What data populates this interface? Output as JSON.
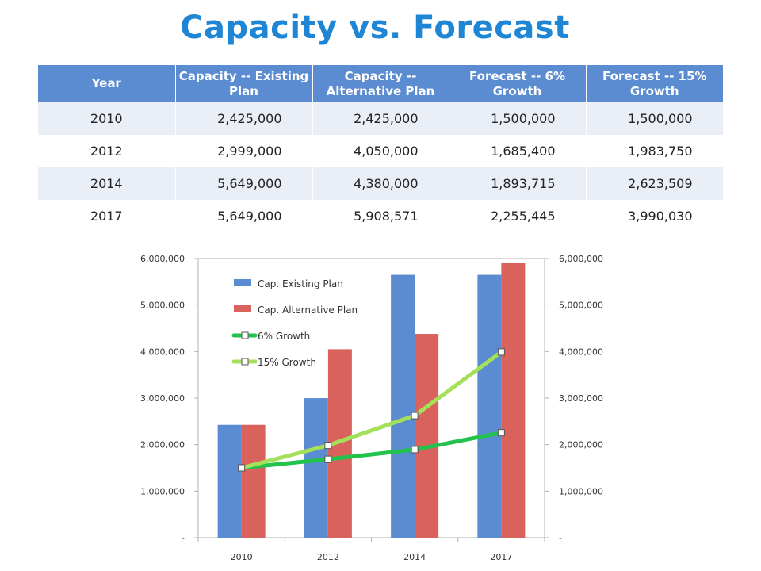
{
  "title": "Capacity vs. Forecast",
  "table": {
    "headers": [
      "Year",
      "Capacity -- Existing Plan",
      "Capacity -- Alternative Plan",
      "Forecast -- 6% Growth",
      "Forecast -- 15% Growth"
    ],
    "rows": [
      [
        "2010",
        "2,425,000",
        "2,425,000",
        "1,500,000",
        "1,500,000"
      ],
      [
        "2012",
        "2,999,000",
        "4,050,000",
        "1,685,400",
        "1,983,750"
      ],
      [
        "2014",
        "5,649,000",
        "4,380,000",
        "1,893,715",
        "2,623,509"
      ],
      [
        "2017",
        "5,649,000",
        "5,908,571",
        "2,255,445",
        "3,990,030"
      ]
    ]
  },
  "chart_data": {
    "type": "bar",
    "categories": [
      "2010",
      "2012",
      "2014",
      "2017"
    ],
    "series": [
      {
        "name": "Cap. Existing Plan",
        "kind": "bar",
        "color": "#5b8bd0",
        "values": [
          2425000,
          2999000,
          5649000,
          5649000
        ]
      },
      {
        "name": "Cap. Alternative Plan",
        "kind": "bar",
        "color": "#d9625d",
        "values": [
          2425000,
          4050000,
          4380000,
          5908571
        ]
      },
      {
        "name": "6% Growth",
        "kind": "line",
        "color": "#22c24d",
        "values": [
          1500000,
          1685400,
          1893715,
          2255445
        ]
      },
      {
        "name": "15% Growth",
        "kind": "line",
        "color": "#a4e05a",
        "values": [
          1500000,
          1983750,
          2623509,
          3990030
        ]
      }
    ],
    "ylim": [
      0,
      6000000
    ],
    "y_ticks": [
      "-",
      "1,000,000",
      "2,000,000",
      "3,000,000",
      "4,000,000",
      "5,000,000",
      "6,000,000"
    ],
    "secondary_y_ticks": [
      "-",
      "1,000,000",
      "2,000,000",
      "3,000,000",
      "4,000,000",
      "5,000,000",
      "6,000,000"
    ],
    "legend_position": "top-left inside plot",
    "grid": false
  }
}
